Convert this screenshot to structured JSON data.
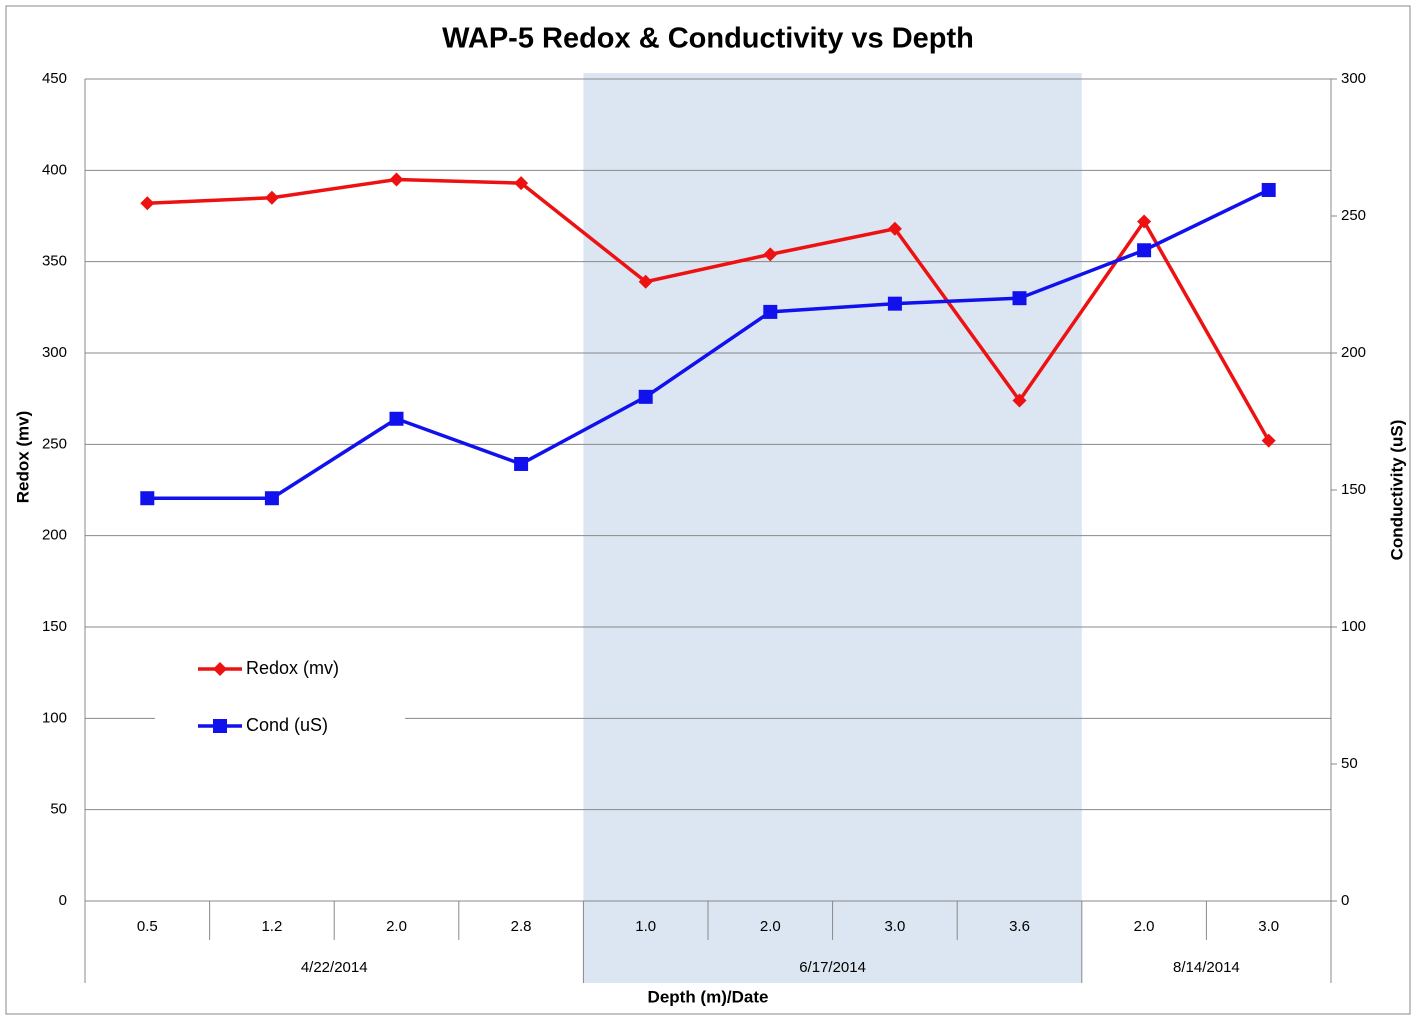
{
  "chart_data": {
    "type": "line",
    "title": "WAP-5 Redox & Conductivity vs Depth",
    "x_label": "Depth (m)/Date",
    "y_label": "Redox (mv)",
    "y2_label": "Conductivity (uS)",
    "category_groups": [
      {
        "name": "4/22/2014",
        "categories": [
          "0.5",
          "1.2",
          "2.0",
          "2.8"
        ]
      },
      {
        "name": "6/17/2014",
        "categories": [
          "1.0",
          "2.0",
          "3.0",
          "3.6"
        ]
      },
      {
        "name": "8/14/2014",
        "categories": [
          "2.0",
          "3.0"
        ]
      }
    ],
    "highlight": {
      "group": 1,
      "color": "#dce6f2"
    },
    "series": [
      {
        "name": "Redox (mv)",
        "color": "#ee1111",
        "marker": "diamond",
        "axis": "y",
        "values": [
          382,
          385,
          395,
          393,
          339,
          354,
          368,
          274,
          372,
          252
        ]
      },
      {
        "name": "Cond (uS)",
        "color": "#1111ee",
        "marker": "square",
        "axis": "y2",
        "values": [
          147,
          147,
          176,
          159.5,
          184,
          215,
          218,
          220,
          237.5,
          259.5
        ]
      }
    ],
    "ylim": [
      0,
      450
    ],
    "yticks": [
      0,
      50,
      100,
      150,
      200,
      250,
      300,
      350,
      400,
      450
    ],
    "y2lim": [
      0,
      300
    ],
    "y2ticks": [
      0,
      50,
      100,
      150,
      200,
      250,
      300
    ],
    "grid": true,
    "legend": "left"
  }
}
